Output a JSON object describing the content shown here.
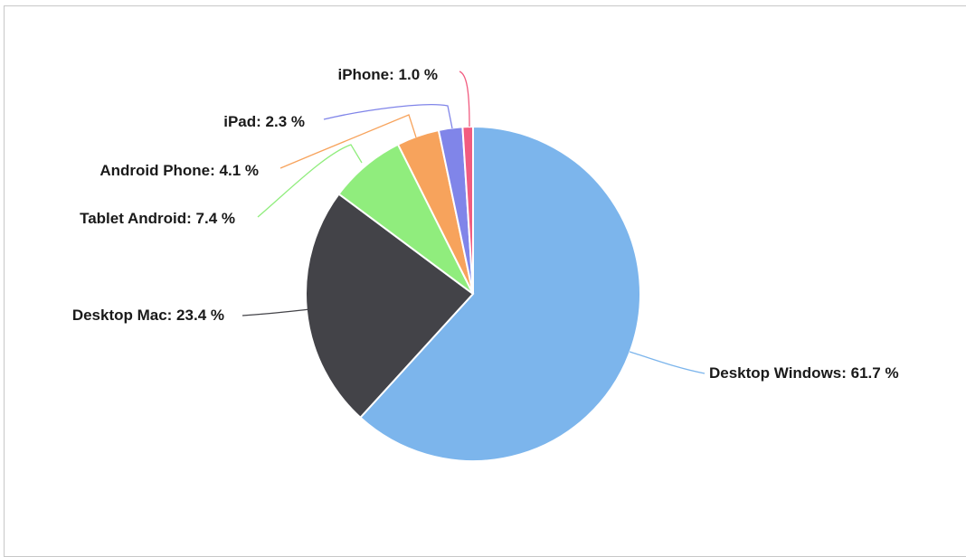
{
  "chart_data": {
    "type": "pie",
    "title": "",
    "legend": "none",
    "slices": [
      {
        "label": "Desktop Windows",
        "value": 61.7,
        "color": "#7cb5ec",
        "text": "Desktop Windows: 61.7 %"
      },
      {
        "label": "Desktop Mac",
        "value": 23.4,
        "color": "#434348",
        "text": "Desktop Mac: 23.4 %"
      },
      {
        "label": "Tablet Android",
        "value": 7.4,
        "color": "#90ed7d",
        "text": "Tablet Android: 7.4 %"
      },
      {
        "label": "Android Phone",
        "value": 4.1,
        "color": "#f7a35c",
        "text": "Android Phone: 4.1 %"
      },
      {
        "label": "iPad",
        "value": 2.3,
        "color": "#8085e9",
        "text": "iPad: 2.3 %"
      },
      {
        "label": "iPhone",
        "value": 1.0,
        "color": "#f15c80",
        "text": "iPhone: 1.0 %"
      }
    ]
  }
}
